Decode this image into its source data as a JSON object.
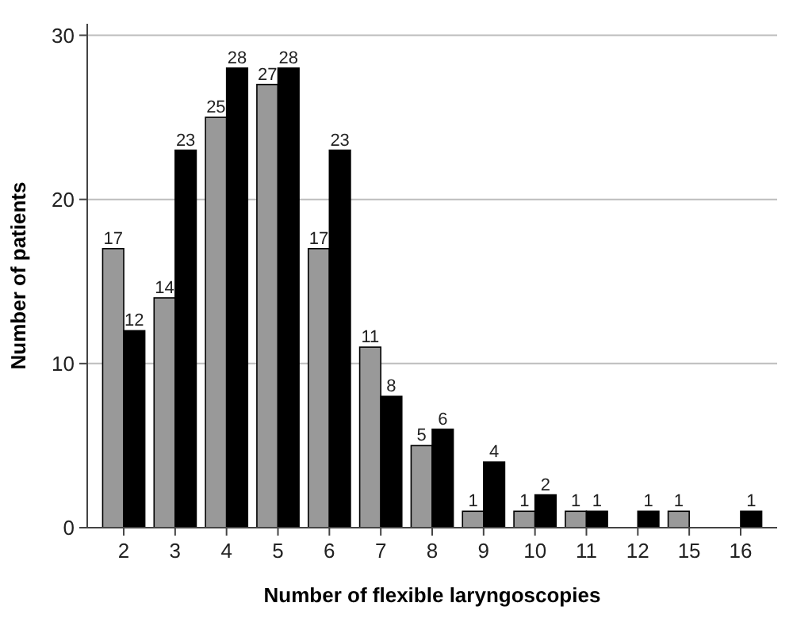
{
  "chart_data": {
    "type": "bar",
    "xlabel": "Number of flexible laryngoscopies",
    "ylabel": "Number of patients",
    "categories": [
      "2",
      "3",
      "4",
      "5",
      "6",
      "7",
      "8",
      "9",
      "10",
      "11",
      "12",
      "15",
      "16"
    ],
    "series": [
      {
        "color": "#999999",
        "values": [
          17,
          14,
          25,
          27,
          17,
          11,
          5,
          1,
          1,
          1,
          0,
          1,
          0
        ],
        "value_labels": [
          "17",
          "14",
          "25",
          "27",
          "17",
          "11",
          "5",
          "1",
          "1",
          "1",
          null,
          "1",
          null
        ]
      },
      {
        "color": "#000000",
        "values": [
          12,
          23,
          28,
          28,
          23,
          8,
          6,
          4,
          2,
          1,
          1,
          0,
          1
        ],
        "value_labels": [
          "12",
          "23",
          "28",
          "28",
          "23",
          "8",
          "6",
          "4",
          "2",
          "1",
          "1",
          null,
          "1"
        ]
      }
    ],
    "ylim": [
      0,
      30.7
    ],
    "yticks": [
      0,
      10,
      20,
      30
    ],
    "grid": "y"
  }
}
